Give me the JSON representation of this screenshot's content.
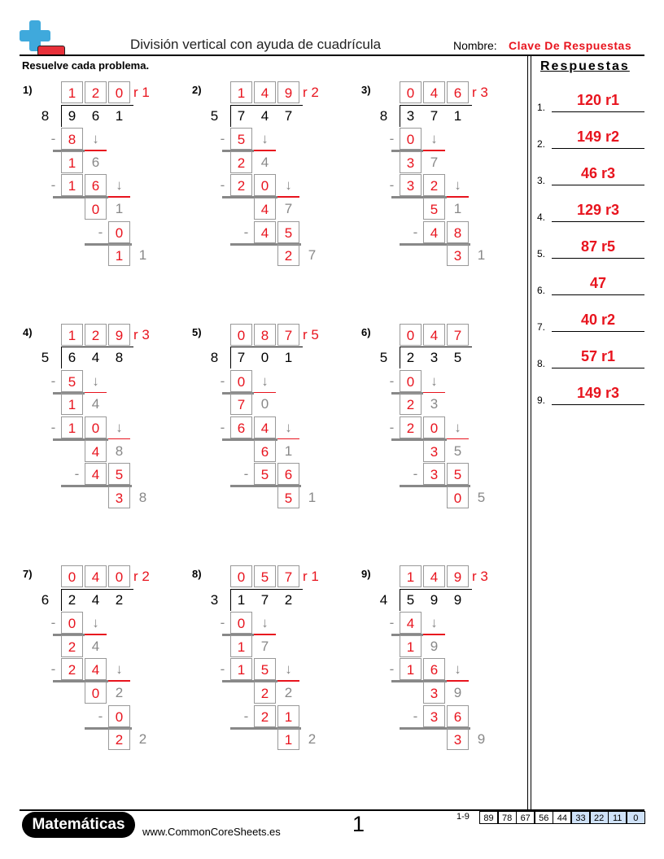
{
  "header": {
    "title": "División vertical con ayuda de cuadrícula",
    "name_label": "Nombre:",
    "name_value": "Clave De Respuestas",
    "logo_icon": "plus-minus-logo"
  },
  "instructions": "Resuelve cada problema.",
  "answers": {
    "title": "Respuestas",
    "items": [
      {
        "num": "1.",
        "value": "120 r1"
      },
      {
        "num": "2.",
        "value": "149 r2"
      },
      {
        "num": "3.",
        "value": "46 r3"
      },
      {
        "num": "4.",
        "value": "129 r3"
      },
      {
        "num": "5.",
        "value": "87 r5"
      },
      {
        "num": "6.",
        "value": "47"
      },
      {
        "num": "7.",
        "value": "40 r2"
      },
      {
        "num": "8.",
        "value": "57 r1"
      },
      {
        "num": "9.",
        "value": "149 r3"
      }
    ]
  },
  "problems": [
    {
      "label": "1)",
      "divisor": "8",
      "dividend": [
        "9",
        "6",
        "1"
      ],
      "quotient": [
        "1",
        "2",
        "0"
      ],
      "remainder": "r 1",
      "steps": [
        {
          "product": [
            "8"
          ],
          "start": 0,
          "diff": [
            "1"
          ],
          "down": "6"
        },
        {
          "product": [
            "1",
            "6"
          ],
          "start": 0,
          "diff": [
            "0"
          ],
          "down": "1"
        },
        {
          "product": [
            "0"
          ],
          "start": 2,
          "diff": [
            "1"
          ],
          "down": "1"
        }
      ]
    },
    {
      "label": "2)",
      "divisor": "5",
      "dividend": [
        "7",
        "4",
        "7"
      ],
      "quotient": [
        "1",
        "4",
        "9"
      ],
      "remainder": "r 2",
      "steps": [
        {
          "product": [
            "5"
          ],
          "start": 0,
          "diff": [
            "2"
          ],
          "down": "4"
        },
        {
          "product": [
            "2",
            "0"
          ],
          "start": 0,
          "diff": [
            "4"
          ],
          "down": "7"
        },
        {
          "product": [
            "4",
            "5"
          ],
          "start": 1,
          "diff": [
            "2"
          ],
          "down": "7"
        }
      ]
    },
    {
      "label": "3)",
      "divisor": "8",
      "dividend": [
        "3",
        "7",
        "1"
      ],
      "quotient": [
        "0",
        "4",
        "6"
      ],
      "remainder": "r 3",
      "steps": [
        {
          "product": [
            "0"
          ],
          "start": 0,
          "diff": [
            "3"
          ],
          "down": "7"
        },
        {
          "product": [
            "3",
            "2"
          ],
          "start": 0,
          "diff": [
            "5"
          ],
          "down": "1"
        },
        {
          "product": [
            "4",
            "8"
          ],
          "start": 1,
          "diff": [
            "3"
          ],
          "down": "1"
        }
      ]
    },
    {
      "label": "4)",
      "divisor": "5",
      "dividend": [
        "6",
        "4",
        "8"
      ],
      "quotient": [
        "1",
        "2",
        "9"
      ],
      "remainder": "r 3",
      "steps": [
        {
          "product": [
            "5"
          ],
          "start": 0,
          "diff": [
            "1"
          ],
          "down": "4"
        },
        {
          "product": [
            "1",
            "0"
          ],
          "start": 0,
          "diff": [
            "4"
          ],
          "down": "8"
        },
        {
          "product": [
            "4",
            "5"
          ],
          "start": 1,
          "diff": [
            "3"
          ],
          "down": "8"
        }
      ]
    },
    {
      "label": "5)",
      "divisor": "8",
      "dividend": [
        "7",
        "0",
        "1"
      ],
      "quotient": [
        "0",
        "8",
        "7"
      ],
      "remainder": "r 5",
      "steps": [
        {
          "product": [
            "0"
          ],
          "start": 0,
          "diff": [
            "7"
          ],
          "down": "0"
        },
        {
          "product": [
            "6",
            "4"
          ],
          "start": 0,
          "diff": [
            "6"
          ],
          "down": "1"
        },
        {
          "product": [
            "5",
            "6"
          ],
          "start": 1,
          "diff": [
            "5"
          ],
          "down": "1"
        }
      ]
    },
    {
      "label": "6)",
      "divisor": "5",
      "dividend": [
        "2",
        "3",
        "5"
      ],
      "quotient": [
        "0",
        "4",
        "7"
      ],
      "remainder": "",
      "steps": [
        {
          "product": [
            "0"
          ],
          "start": 0,
          "diff": [
            "2"
          ],
          "down": "3"
        },
        {
          "product": [
            "2",
            "0"
          ],
          "start": 0,
          "diff": [
            "3"
          ],
          "down": "5"
        },
        {
          "product": [
            "3",
            "5"
          ],
          "start": 1,
          "diff": [
            "0"
          ],
          "down": "5"
        }
      ]
    },
    {
      "label": "7)",
      "divisor": "6",
      "dividend": [
        "2",
        "4",
        "2"
      ],
      "quotient": [
        "0",
        "4",
        "0"
      ],
      "remainder": "r 2",
      "steps": [
        {
          "product": [
            "0"
          ],
          "start": 0,
          "diff": [
            "2"
          ],
          "down": "4"
        },
        {
          "product": [
            "2",
            "4"
          ],
          "start": 0,
          "diff": [
            "0"
          ],
          "down": "2"
        },
        {
          "product": [
            "0"
          ],
          "start": 2,
          "diff": [
            "2"
          ],
          "down": "2"
        }
      ]
    },
    {
      "label": "8)",
      "divisor": "3",
      "dividend": [
        "1",
        "7",
        "2"
      ],
      "quotient": [
        "0",
        "5",
        "7"
      ],
      "remainder": "r 1",
      "steps": [
        {
          "product": [
            "0"
          ],
          "start": 0,
          "diff": [
            "1"
          ],
          "down": "7"
        },
        {
          "product": [
            "1",
            "5"
          ],
          "start": 0,
          "diff": [
            "2"
          ],
          "down": "2"
        },
        {
          "product": [
            "2",
            "1"
          ],
          "start": 1,
          "diff": [
            "1"
          ],
          "down": "2"
        }
      ]
    },
    {
      "label": "9)",
      "divisor": "4",
      "dividend": [
        "5",
        "9",
        "9"
      ],
      "quotient": [
        "1",
        "4",
        "9"
      ],
      "remainder": "r 3",
      "steps": [
        {
          "product": [
            "4"
          ],
          "start": 0,
          "diff": [
            "1"
          ],
          "down": "9"
        },
        {
          "product": [
            "1",
            "6"
          ],
          "start": 0,
          "diff": [
            "3"
          ],
          "down": "9"
        },
        {
          "product": [
            "3",
            "6"
          ],
          "start": 1,
          "diff": [
            "3"
          ],
          "down": "9"
        }
      ]
    }
  ],
  "symbols": {
    "minus": "-",
    "arrow": "↓"
  },
  "colors": {
    "answer": "#e8141e",
    "logo_blue": "#3fa9dc",
    "logo_red": "#e8303a",
    "score_highlight": "#cfe2f8"
  },
  "footer": {
    "brand": "Matemáticas",
    "url": "www.CommonCoreSheets.es",
    "page": "1",
    "score_label": "1-9",
    "scores": [
      "89",
      "78",
      "67",
      "56",
      "44",
      "33",
      "22",
      "11",
      "0"
    ],
    "highlighted_from": 5
  }
}
